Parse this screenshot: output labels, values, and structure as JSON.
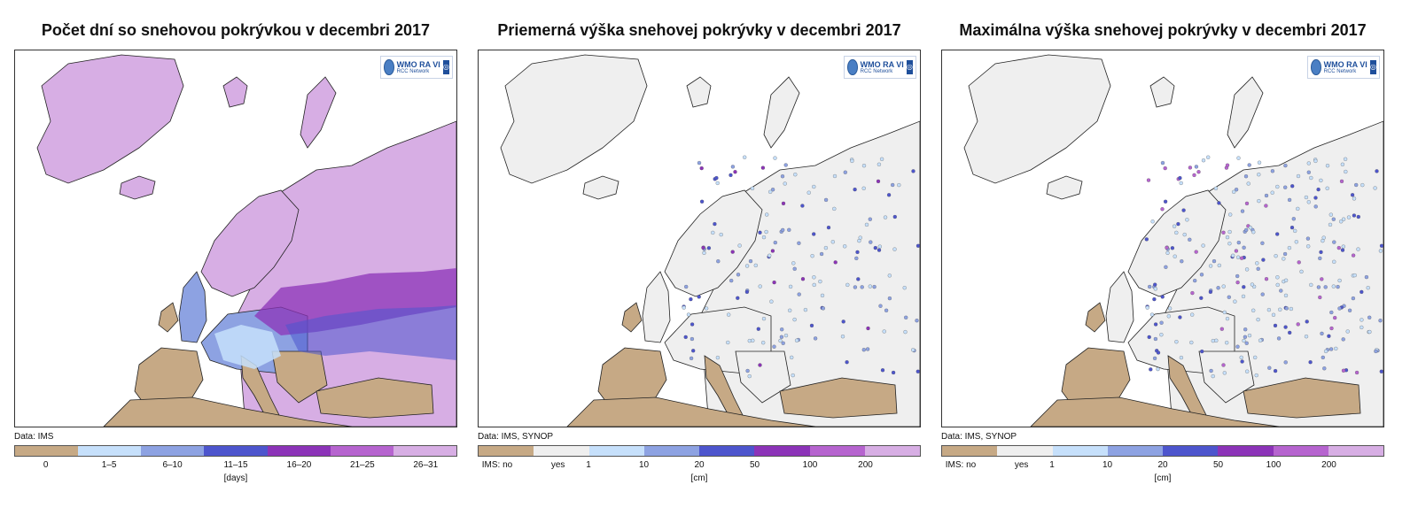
{
  "panels": [
    {
      "title": "Počet dní so snehovou pokrývkou  v decembri 2017",
      "data_source": "Data: IMS",
      "logo": {
        "main": "WMO RA VI",
        "sub": "RCC Network"
      },
      "legend": {
        "colors": [
          "#c6a985",
          "#c6e0fb",
          "#8da2e2",
          "#4d55cd",
          "#8c33b8",
          "#b664cf",
          "#d7aee4"
        ],
        "labels": [
          "0",
          "1–5",
          "6–10",
          "11–15",
          "16–20",
          "21–25",
          "26–31"
        ],
        "label_mode": "center",
        "unit": "[days]"
      }
    },
    {
      "title": "Priemerná výška snehovej pokrývky v decembri 2017",
      "data_source": "Data: IMS, SYNOP",
      "logo": {
        "main": "WMO RA VI",
        "sub": "RCC Network"
      },
      "legend": {
        "colors": [
          "#c6a985",
          "#efefef",
          "#c6e0fb",
          "#8da2e2",
          "#4d55cd",
          "#8c33b8",
          "#b664cf",
          "#d7aee4"
        ],
        "labels": [
          "IMS: no",
          "yes",
          "1",
          "10",
          "20",
          "50",
          "100",
          "200"
        ],
        "label_mode": "mixed",
        "unit": "[cm]"
      }
    },
    {
      "title": "Maximálna  výška snehovej pokrývky v decembri 2017",
      "data_source": "Data: IMS, SYNOP",
      "logo": {
        "main": "WMO RA VI",
        "sub": "RCC Network"
      },
      "legend": {
        "colors": [
          "#c6a985",
          "#efefef",
          "#c6e0fb",
          "#8da2e2",
          "#4d55cd",
          "#8c33b8",
          "#b664cf",
          "#d7aee4"
        ],
        "labels": [
          "IMS: no",
          "yes",
          "1",
          "10",
          "20",
          "50",
          "100",
          "200"
        ],
        "label_mode": "mixed",
        "unit": "[cm]"
      }
    }
  ],
  "map_colors": {
    "sea": "#ffffff",
    "no_snow": "#c6a985",
    "snow_yes": "#efefef",
    "panel1_snow": "#d7aee4",
    "border": "#222222"
  }
}
